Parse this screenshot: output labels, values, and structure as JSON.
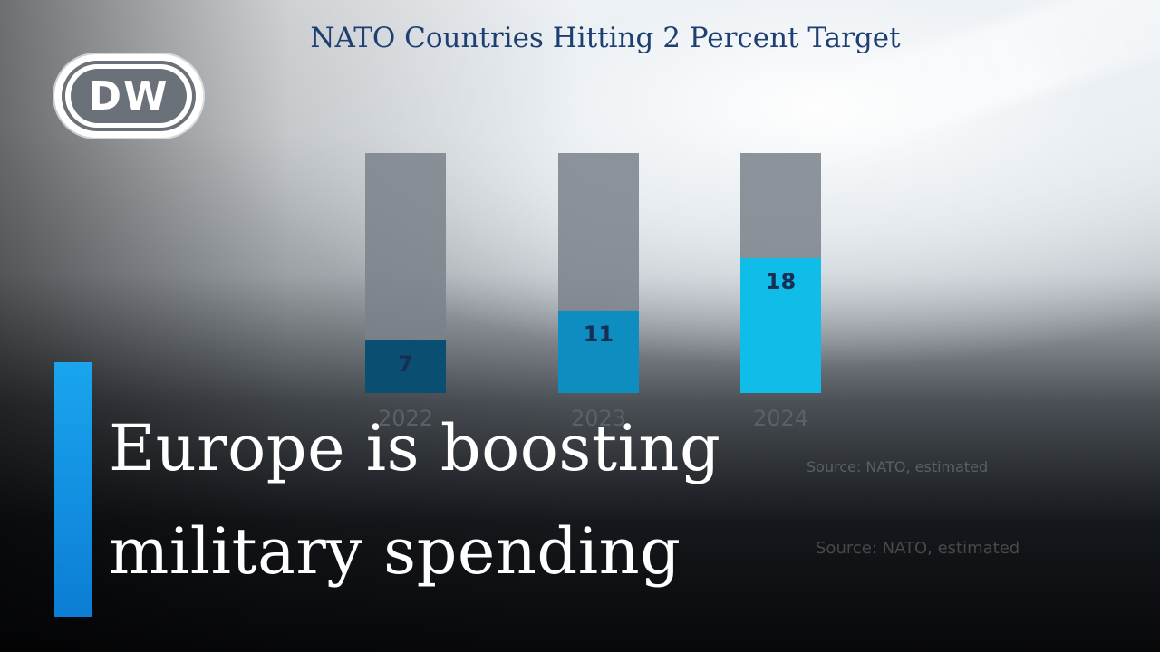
{
  "logo": {
    "text": "DW"
  },
  "headline": {
    "line1": "Europe is boosting",
    "line2": "military spending"
  },
  "chart_data": {
    "type": "bar",
    "title": "NATO Countries Hitting 2 Percent Target",
    "categories": [
      "2022",
      "2023",
      "2024"
    ],
    "values": [
      7,
      11,
      18
    ],
    "ylim": [
      0,
      32
    ],
    "xlabel": "",
    "ylabel": "",
    "grid": false,
    "source": "Source: NATO, estimated",
    "colors": {
      "track": "#7a8189",
      "bar_2022": "#0a4f72",
      "bar_2023": "#0e8dc0",
      "bar_2024": "#0fbde8",
      "label": "#152f55"
    }
  }
}
